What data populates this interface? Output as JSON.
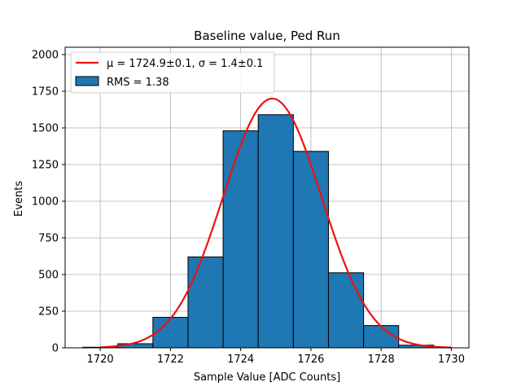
{
  "chart_data": {
    "type": "bar",
    "title": "Baseline value, Ped Run",
    "xlabel": "Sample Value [ADC Counts]",
    "ylabel": "Events",
    "xlim": [
      1719,
      1730.5
    ],
    "ylim": [
      0,
      2050
    ],
    "xticks": [
      1720,
      1722,
      1724,
      1726,
      1728,
      1730
    ],
    "yticks": [
      0,
      250,
      500,
      750,
      1000,
      1250,
      1500,
      1750,
      2000
    ],
    "grid": true,
    "legend_position": "top-left",
    "histogram": {
      "name": "RMS = 1.38",
      "color": "#1f77b4",
      "bins": [
        {
          "x0": 1719.5,
          "x1": 1720.5,
          "value": 4
        },
        {
          "x0": 1720.5,
          "x1": 1721.5,
          "value": 28
        },
        {
          "x0": 1721.5,
          "x1": 1722.5,
          "value": 208
        },
        {
          "x0": 1722.5,
          "x1": 1723.5,
          "value": 620
        },
        {
          "x0": 1723.5,
          "x1": 1724.5,
          "value": 1480
        },
        {
          "x0": 1724.5,
          "x1": 1725.5,
          "value": 1590
        },
        {
          "x0": 1725.5,
          "x1": 1726.5,
          "value": 1340
        },
        {
          "x0": 1726.5,
          "x1": 1727.5,
          "value": 512
        },
        {
          "x0": 1727.5,
          "x1": 1728.5,
          "value": 152
        },
        {
          "x0": 1728.5,
          "x1": 1729.5,
          "value": 18
        }
      ]
    },
    "fit": {
      "name": "μ = 1724.9±0.1, σ = 1.4±0.1",
      "type": "gaussian",
      "color": "#ee1111",
      "mu": 1724.9,
      "sigma": 1.4,
      "amplitude": 1700,
      "x_range": [
        1720,
        1730
      ]
    }
  }
}
